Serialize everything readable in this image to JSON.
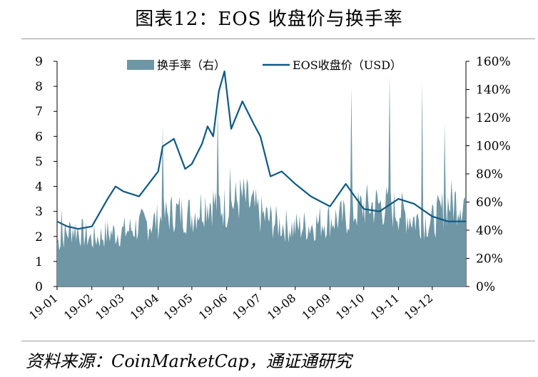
{
  "figure": {
    "title": "图表12：EOS 收盘价与换手率",
    "source": "资料来源：CoinMarketCap，通证通研究"
  },
  "colors": {
    "turnover": "#6e96a5",
    "price": "#0d5a86",
    "axis": "#000000"
  },
  "chart_data": {
    "type": "area",
    "grid": false,
    "legend_position": "top-center",
    "x_ticks": [
      "19-01",
      "19-02",
      "19-03",
      "19-04",
      "19-05",
      "19-06",
      "19-07",
      "19-08",
      "19-09",
      "19-10",
      "19-11",
      "19-12"
    ],
    "y_left": {
      "min": 0,
      "max": 9,
      "ticks": [
        "0",
        "1",
        "2",
        "3",
        "4",
        "5",
        "6",
        "7",
        "8",
        "9"
      ]
    },
    "y_right": {
      "min": 0,
      "max": 160,
      "unit": "%",
      "ticks": [
        "0%",
        "20%",
        "40%",
        "60%",
        "80%",
        "100%",
        "120%",
        "140%",
        "160%"
      ]
    },
    "series": [
      {
        "name": "换手率（右）",
        "kind": "area",
        "axis": "right",
        "unit": "%",
        "x": [
          "01-01",
          "01-15",
          "02-01",
          "02-15",
          "03-01",
          "03-15",
          "04-01",
          "04-15",
          "05-01",
          "05-15",
          "06-01",
          "06-15",
          "07-01",
          "07-15",
          "08-01",
          "08-15",
          "09-01",
          "09-15",
          "10-01",
          "10-15",
          "11-01",
          "11-15",
          "12-01",
          "12-15",
          "12-31"
        ],
        "values": [
          31,
          41,
          33,
          37,
          38,
          42,
          46,
          52,
          50,
          60,
          55,
          62,
          50,
          44,
          41,
          43,
          47,
          48,
          56,
          57,
          53,
          47,
          45,
          58,
          61
        ],
        "spikes": [
          {
            "x": "01-05",
            "value": 55
          },
          {
            "x": "04-05",
            "value": 114
          },
          {
            "x": "05-24",
            "value": 126
          },
          {
            "x": "06-04",
            "value": 85
          },
          {
            "x": "09-20",
            "value": 142
          },
          {
            "x": "10-24",
            "value": 150
          },
          {
            "x": "11-22",
            "value": 146
          },
          {
            "x": "12-12",
            "value": 116
          }
        ]
      },
      {
        "name": "EOS收盘价（USD）",
        "kind": "line",
        "axis": "left",
        "unit": "USD",
        "x": [
          "01-01",
          "01-10",
          "01-20",
          "02-01",
          "02-15",
          "02-22",
          "03-01",
          "03-15",
          "04-01",
          "04-05",
          "04-15",
          "04-25",
          "05-01",
          "05-10",
          "05-15",
          "05-20",
          "05-25",
          "05-30",
          "06-05",
          "06-15",
          "06-25",
          "07-01",
          "07-10",
          "07-20",
          "08-01",
          "08-15",
          "09-01",
          "09-15",
          "10-01",
          "10-15",
          "11-01",
          "11-15",
          "12-01",
          "12-15",
          "12-31"
        ],
        "values": [
          2.6,
          2.4,
          2.3,
          2.4,
          3.5,
          4.0,
          3.8,
          3.6,
          4.6,
          5.6,
          5.9,
          4.7,
          4.9,
          5.7,
          6.4,
          6.0,
          7.8,
          8.6,
          6.3,
          7.4,
          6.5,
          6.0,
          4.4,
          4.6,
          4.1,
          3.6,
          3.2,
          4.1,
          3.1,
          3.0,
          3.5,
          3.3,
          2.8,
          2.6,
          2.6
        ]
      }
    ]
  }
}
